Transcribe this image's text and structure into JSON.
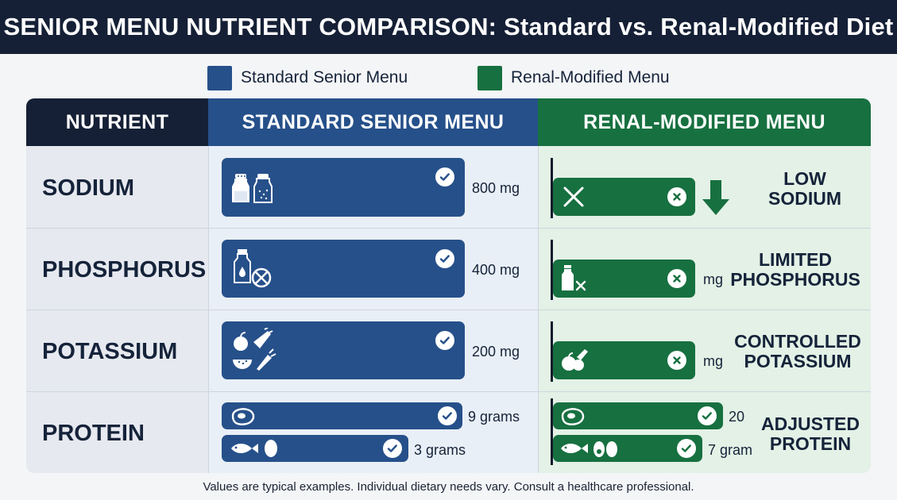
{
  "title": "SENIOR MENU NUTRIENT COMPARISON: Standard vs. Renal-Modified Diet",
  "legend": {
    "standard": "Standard Senior Menu",
    "renal": "Renal-Modified Menu"
  },
  "colors": {
    "standard": "#26508a",
    "renal": "#177040",
    "header_dark": "#152036"
  },
  "table": {
    "headers": {
      "nutrient": "NUTRIENT",
      "standard": "STANDARD SENIOR MENU",
      "renal": "RENAL-MODIFIED MENU"
    }
  },
  "chart_data": {
    "type": "table",
    "rows": [
      {
        "nutrient": "SODIUM",
        "standard_icon": "salt-pepper-shakers-icon",
        "standard_value": "800 mg",
        "renal_icon": "x-icon",
        "renal_value": "",
        "renal_indicator": "down-arrow-icon",
        "renal_status_line1": "LOW",
        "renal_status_line2": "SODIUM"
      },
      {
        "nutrient": "PHOSPHORUS",
        "standard_icon": "milk-bottle-icon",
        "standard_value": "400 mg",
        "renal_icon": "milk-bottle-x-icon",
        "renal_value": "mg",
        "renal_status_line1": "LIMITED",
        "renal_status_line2": "PHOSPHORUS"
      },
      {
        "nutrient": "POTASSIUM",
        "standard_icon": "fruits-vegetables-icon",
        "standard_value": "200 mg",
        "renal_icon": "fruits-vegetables-icon",
        "renal_value": "mg",
        "renal_status_line1": "CONTROLLED",
        "renal_status_line2": "POTASSIUM"
      },
      {
        "nutrient": "PROTEIN",
        "standard_sub": [
          {
            "icon": "steak-icon",
            "value": "9 grams"
          },
          {
            "icon": "fish-egg-icon",
            "value": "3 grams"
          }
        ],
        "renal_sub": [
          {
            "icon": "steak-icon",
            "value": "20"
          },
          {
            "icon": "fish-eggs-icon",
            "value": "7 gram"
          }
        ],
        "renal_status_line1": "ADJUSTED",
        "renal_status_line2": "PROTEIN"
      }
    ]
  },
  "footnote": "Values are typical examples. Individual dietary needs vary. Consult a healthcare professional."
}
